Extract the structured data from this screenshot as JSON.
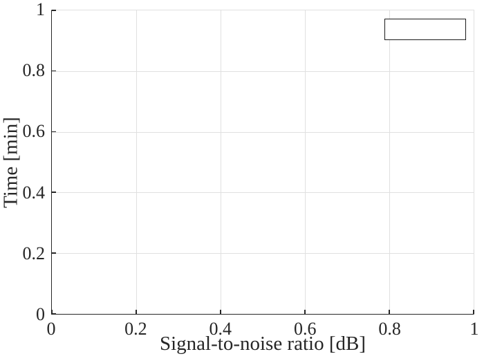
{
  "figure": {
    "background": "#ffffff"
  },
  "chart_data": {
    "type": "line",
    "title": "",
    "xlabel": "Signal-to-noise ratio [dB]",
    "ylabel": "Time [min]",
    "xlim": [
      0,
      1
    ],
    "ylim": [
      0,
      1
    ],
    "xticks": [
      0,
      0.2,
      0.4,
      0.6,
      0.8,
      1
    ],
    "yticks": [
      0,
      0.2,
      0.4,
      0.6,
      0.8,
      1
    ],
    "xtick_labels": [
      "0",
      "0.2",
      "0.4",
      "0.6",
      "0.8",
      "1"
    ],
    "ytick_labels": [
      "0",
      "0.2",
      "0.4",
      "0.6",
      "0.8",
      "1"
    ],
    "grid": true,
    "tick_direction": "in",
    "series": [],
    "legend": {
      "visible": true,
      "entries": [],
      "position": "northeast",
      "box": {
        "x": [
          0.789,
          0.982
        ],
        "y": [
          0.902,
          0.973
        ]
      }
    },
    "colors": {
      "axis": "#262626",
      "grid": "#e0e0e0",
      "text": "#262626",
      "legend_border": "#1a1a1a",
      "background": "#ffffff"
    }
  }
}
